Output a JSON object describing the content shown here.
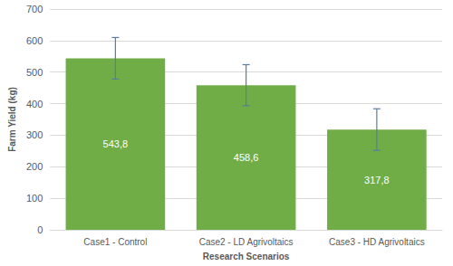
{
  "chart_data": {
    "type": "bar",
    "x_label": "Research Scenarios",
    "y_label": "Farm Yield (kg)",
    "categories": [
      "Case1 - Control",
      "Case2 - LD Agrivoltaics",
      "Case3 - HD Agrivoltaics"
    ],
    "values": [
      543.8,
      458.6,
      317.8
    ],
    "value_labels": [
      "543,8",
      "458,6",
      "317,8"
    ],
    "errors": [
      66,
      65,
      66
    ],
    "color": "#70ad47",
    "ylim": [
      0,
      700
    ],
    "yticks": [
      0,
      100,
      200,
      300,
      400,
      500,
      600,
      700
    ],
    "grid": true,
    "data_labels": true
  }
}
